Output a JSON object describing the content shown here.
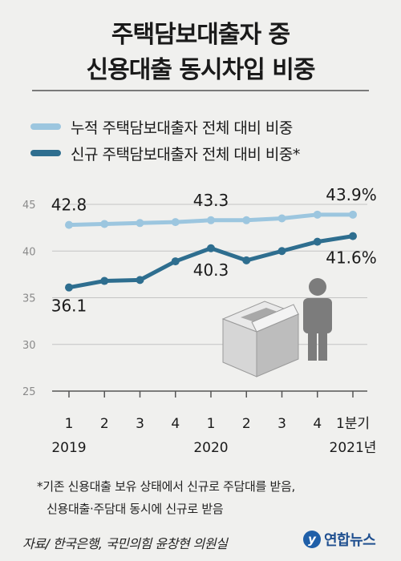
{
  "title_line1": "주택담보대출자 중",
  "title_line2": "신용대출 동시차입 비중",
  "colors": {
    "series1": "#9cc6df",
    "series2": "#2e6e8f",
    "background": "#f0f0ee"
  },
  "icons": [
    "box-with-person-illustration"
  ],
  "chart_data": {
    "type": "line",
    "categories": [
      "1",
      "2",
      "3",
      "4",
      "1",
      "2",
      "3",
      "4",
      "1분기"
    ],
    "year_labels": [
      "2019",
      "2020",
      "2021년"
    ],
    "ylim": [
      25,
      45
    ],
    "yticks": [
      "25",
      "30",
      "35",
      "40",
      "45"
    ],
    "grid": true,
    "legend_position": "top-left",
    "series": [
      {
        "name": "누적 주택담보대출자 전체 대비 비중",
        "values": [
          42.8,
          42.9,
          43.0,
          43.1,
          43.3,
          43.3,
          43.5,
          43.9,
          43.9
        ]
      },
      {
        "name": "신규 주택담보대출자 전체 대비 비중*",
        "values": [
          36.1,
          36.8,
          36.9,
          38.9,
          40.3,
          39.0,
          40.0,
          41.0,
          41.6
        ]
      }
    ],
    "data_labels": [
      {
        "series": 0,
        "index": 0,
        "text": "42.8"
      },
      {
        "series": 0,
        "index": 4,
        "text": "43.3"
      },
      {
        "series": 0,
        "index": 8,
        "text": "43.9%"
      },
      {
        "series": 1,
        "index": 0,
        "text": "36.1"
      },
      {
        "series": 1,
        "index": 4,
        "text": "40.3"
      },
      {
        "series": 1,
        "index": 8,
        "text": "41.6%"
      }
    ]
  },
  "footnote_line1": "*기존 신용대출 보유 상태에서 신규로 주담대를 받음,",
  "footnote_line2": "신용대출·주담대 동시에 신규로 받음",
  "source": "자료/ 한국은행, 국민의힘 윤창현 의원실",
  "logo_mark": "y",
  "logo_text": "연합뉴스"
}
